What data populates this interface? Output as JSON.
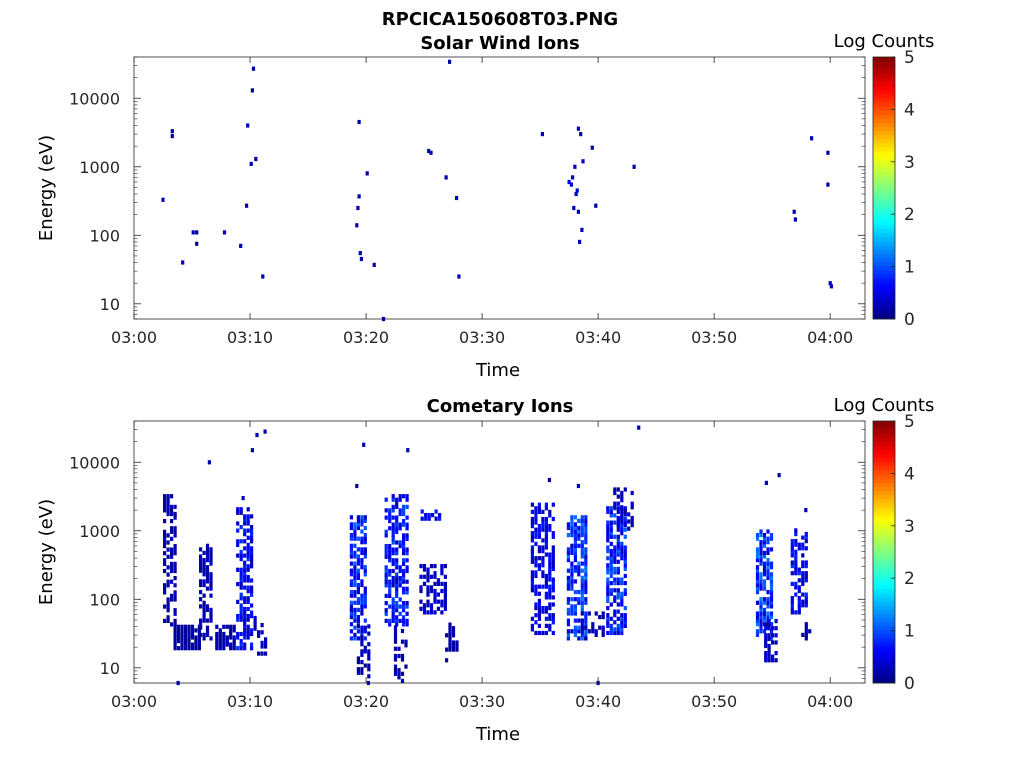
{
  "figure": {
    "title": "RPCICA150608T03.PNG"
  },
  "chart_data": [
    {
      "type": "heatmap",
      "title": "Solar Wind Ions",
      "xlabel": "Time",
      "ylabel": "Energy (eV)",
      "x_tick_labels": [
        "03:00",
        "03:10",
        "03:20",
        "03:30",
        "03:40",
        "03:50",
        "04:00"
      ],
      "x_range": [
        "03:00",
        "04:03"
      ],
      "y_scale": "log",
      "y_tick_values": [
        10,
        100,
        1000,
        10000
      ],
      "y_tick_labels": [
        "10",
        "100",
        "1000",
        "10000"
      ],
      "y_range": [
        6,
        40000
      ],
      "colorbar": {
        "label": "Log Counts",
        "range": [
          0,
          5
        ],
        "ticks": [
          "0",
          "1",
          "2",
          "3",
          "4",
          "5"
        ],
        "colormap": "jet"
      },
      "cells": [
        [
          2.5,
          330,
          0.3
        ],
        [
          3.3,
          3300,
          0.2
        ],
        [
          3.3,
          2800,
          0.2
        ],
        [
          4.2,
          40,
          0.3
        ],
        [
          5.1,
          110,
          0.2
        ],
        [
          5.4,
          110,
          0.2
        ],
        [
          5.4,
          75,
          0.2
        ],
        [
          7.8,
          110,
          0.3
        ],
        [
          9.2,
          70,
          0.2
        ],
        [
          9.7,
          270,
          0.2
        ],
        [
          9.8,
          4000,
          0.3
        ],
        [
          10.1,
          1100,
          0.2
        ],
        [
          10.2,
          13000,
          0.2
        ],
        [
          10.3,
          27000,
          0.2
        ],
        [
          10.5,
          1300,
          0.2
        ],
        [
          11.1,
          25,
          0.3
        ],
        [
          19.2,
          140,
          0.2
        ],
        [
          19.3,
          250,
          0.2
        ],
        [
          19.4,
          370,
          0.2
        ],
        [
          19.4,
          4500,
          0.2
        ],
        [
          19.5,
          55,
          0.2
        ],
        [
          19.6,
          45,
          0.2
        ],
        [
          20.1,
          800,
          0.2
        ],
        [
          20.7,
          37,
          0.2
        ],
        [
          21.5,
          6,
          0.2
        ],
        [
          25.4,
          1700,
          0.3
        ],
        [
          25.6,
          1600,
          0.3
        ],
        [
          26.9,
          700,
          0.2
        ],
        [
          27.2,
          34000,
          0.2
        ],
        [
          27.8,
          350,
          0.3
        ],
        [
          28,
          25,
          0.3
        ],
        [
          35.2,
          3000,
          0.2
        ],
        [
          37.5,
          600,
          0.4
        ],
        [
          37.7,
          550,
          0.5
        ],
        [
          37.8,
          700,
          0.3
        ],
        [
          37.9,
          250,
          0.3
        ],
        [
          38.0,
          1000,
          0.3
        ],
        [
          38.1,
          400,
          0.4
        ],
        [
          38.2,
          450,
          0.4
        ],
        [
          38.3,
          220,
          0.3
        ],
        [
          38.3,
          3600,
          0.4
        ],
        [
          38.4,
          80,
          0.3
        ],
        [
          38.5,
          3000,
          0.3
        ],
        [
          38.6,
          120,
          0.3
        ],
        [
          38.7,
          1200,
          0.3
        ],
        [
          39.5,
          1900,
          0.2
        ],
        [
          39.8,
          270,
          0.2
        ],
        [
          43.1,
          1000,
          0.2
        ],
        [
          56.9,
          220,
          0.2
        ],
        [
          57.0,
          170,
          0.2
        ],
        [
          58.4,
          2600,
          0.2
        ],
        [
          59.8,
          1600,
          0.2
        ],
        [
          59.8,
          550,
          0.2
        ],
        [
          60.0,
          20,
          0.3
        ],
        [
          60.1,
          18,
          0.3
        ]
      ]
    },
    {
      "type": "heatmap",
      "title": "Cometary Ions",
      "xlabel": "Time",
      "ylabel": "Energy (eV)",
      "x_tick_labels": [
        "03:00",
        "03:10",
        "03:20",
        "03:30",
        "03:40",
        "03:50",
        "04:00"
      ],
      "x_range": [
        "03:00",
        "04:03"
      ],
      "y_scale": "log",
      "y_tick_values": [
        10,
        100,
        1000,
        10000
      ],
      "y_tick_labels": [
        "10",
        "100",
        "1000",
        "10000"
      ],
      "y_range": [
        6,
        40000
      ],
      "colorbar": {
        "label": "Log Counts",
        "range": [
          0,
          5
        ],
        "ticks": [
          "0",
          "1",
          "2",
          "3",
          "4",
          "5"
        ],
        "colormap": "jet"
      },
      "bursts": [
        {
          "t0": 2.5,
          "t1": 3.6,
          "e0": 40,
          "e1": 3000,
          "v": 0.25,
          "d": 0.55
        },
        {
          "t0": 3.4,
          "t1": 5.6,
          "e0": 18,
          "e1": 40,
          "v": 0.2,
          "d": 0.9
        },
        {
          "t0": 5.6,
          "t1": 6.6,
          "e0": 25,
          "e1": 600,
          "v": 0.3,
          "d": 0.5
        },
        {
          "t0": 7.0,
          "t1": 8.6,
          "e0": 18,
          "e1": 40,
          "v": 0.25,
          "d": 0.8
        },
        {
          "t0": 8.8,
          "t1": 10.3,
          "e0": 18,
          "e1": 2000,
          "v": 0.7,
          "d": 0.55
        },
        {
          "t0": 10.3,
          "t1": 11.5,
          "e0": 15,
          "e1": 50,
          "v": 0.3,
          "d": 0.4
        },
        {
          "t0": 18.6,
          "t1": 20.0,
          "e0": 25,
          "e1": 1500,
          "v": 0.9,
          "d": 0.65
        },
        {
          "t0": 19.2,
          "t1": 20.3,
          "e0": 7,
          "e1": 40,
          "v": 0.3,
          "d": 0.4
        },
        {
          "t0": 21.6,
          "t1": 23.6,
          "e0": 40,
          "e1": 3000,
          "v": 0.8,
          "d": 0.65
        },
        {
          "t0": 22.4,
          "t1": 23.4,
          "e0": 6,
          "e1": 40,
          "v": 0.3,
          "d": 0.5
        },
        {
          "t0": 24.6,
          "t1": 26.8,
          "e0": 60,
          "e1": 300,
          "v": 0.4,
          "d": 0.5
        },
        {
          "t0": 24.7,
          "t1": 26.3,
          "e0": 1400,
          "e1": 2000,
          "v": 0.7,
          "d": 0.5
        },
        {
          "t0": 26.8,
          "t1": 28.0,
          "e0": 12,
          "e1": 40,
          "v": 0.25,
          "d": 0.5
        },
        {
          "t0": 34.2,
          "t1": 36.2,
          "e0": 30,
          "e1": 2500,
          "v": 0.6,
          "d": 0.6
        },
        {
          "t0": 37.3,
          "t1": 39.0,
          "e0": 25,
          "e1": 1500,
          "v": 1.0,
          "d": 0.7
        },
        {
          "t0": 38.5,
          "t1": 40.5,
          "e0": 25,
          "e1": 60,
          "v": 0.3,
          "d": 0.4
        },
        {
          "t0": 40.7,
          "t1": 42.2,
          "e0": 30,
          "e1": 2000,
          "v": 0.9,
          "d": 0.65
        },
        {
          "t0": 41.3,
          "t1": 42.8,
          "e0": 1000,
          "e1": 4000,
          "v": 0.4,
          "d": 0.4
        },
        {
          "t0": 53.6,
          "t1": 55.0,
          "e0": 25,
          "e1": 1000,
          "v": 1.0,
          "d": 0.7
        },
        {
          "t0": 54.3,
          "t1": 55.3,
          "e0": 12,
          "e1": 50,
          "v": 0.4,
          "d": 0.5
        },
        {
          "t0": 56.6,
          "t1": 58.0,
          "e0": 60,
          "e1": 1000,
          "v": 0.7,
          "d": 0.5
        },
        {
          "t0": 57.5,
          "t1": 58.3,
          "e0": 25,
          "e1": 60,
          "v": 0.3,
          "d": 0.4
        }
      ],
      "cells": [
        [
          3.8,
          6,
          0.2
        ],
        [
          6.5,
          10000,
          0.2
        ],
        [
          9.4,
          3000,
          0.3
        ],
        [
          10.6,
          25000,
          0.2
        ],
        [
          11.3,
          28000,
          0.2
        ],
        [
          10.2,
          15000,
          0.2
        ],
        [
          19.2,
          4500,
          0.2
        ],
        [
          19.8,
          18000,
          0.2
        ],
        [
          23.6,
          15000,
          0.2
        ],
        [
          38.3,
          4500,
          0.3
        ],
        [
          35.8,
          5500,
          0.2
        ],
        [
          43.5,
          32000,
          0.2
        ],
        [
          54.5,
          5000,
          0.3
        ],
        [
          55.6,
          6500,
          0.2
        ],
        [
          57.9,
          2000,
          0.2
        ],
        [
          40.0,
          6,
          0.2
        ],
        [
          20.2,
          6,
          0.3
        ]
      ]
    }
  ]
}
